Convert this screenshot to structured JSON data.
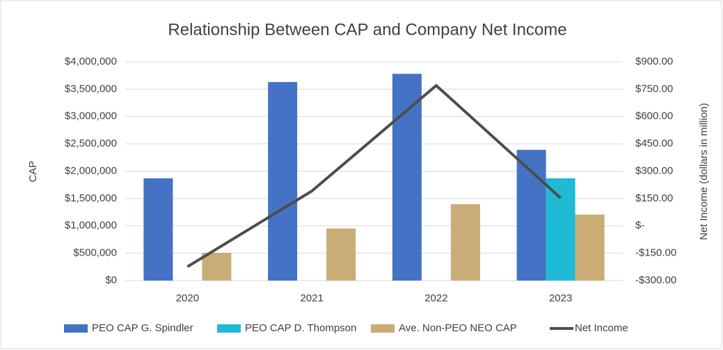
{
  "chart_data": {
    "type": "bar",
    "title": "Relationship Between CAP and Company Net Income",
    "ylabel": "CAP",
    "y2label": "Net Income (dollars in million)",
    "categories": [
      "2020",
      "2021",
      "2022",
      "2023"
    ],
    "series": [
      {
        "name": "PEO CAP G. Spindler",
        "color": "#4472c4",
        "values": [
          1870000,
          3630000,
          3780000,
          2390000
        ]
      },
      {
        "name": "PEO CAP D. Thompson",
        "color": "#1fbad6",
        "values": [
          null,
          null,
          null,
          1870000
        ]
      },
      {
        "name": "Ave. Non-PEO NEO CAP",
        "color": "#c9ac76",
        "values": [
          508000,
          952000,
          1397000,
          1206000
        ]
      },
      {
        "name": "Net Income",
        "color": "#4d4d4d",
        "type": "line",
        "axis": "y2",
        "values": [
          -224,
          191,
          770,
          153
        ]
      }
    ],
    "ylim": [
      0,
      4000000
    ],
    "yticks": [
      {
        "value": 0,
        "label": "$0"
      },
      {
        "value": 500000,
        "label": "$500,000"
      },
      {
        "value": 1000000,
        "label": "$1,000,000"
      },
      {
        "value": 1500000,
        "label": "$1,500,000"
      },
      {
        "value": 2000000,
        "label": "$2,000,000"
      },
      {
        "value": 2500000,
        "label": "$2,500,000"
      },
      {
        "value": 3000000,
        "label": "$3,000,000"
      },
      {
        "value": 3500000,
        "label": "$3,500,000"
      },
      {
        "value": 4000000,
        "label": "$4,000,000"
      }
    ],
    "y2lim": [
      -300,
      900
    ],
    "y2ticks": [
      {
        "value": -300,
        "label": "-$300.00"
      },
      {
        "value": -150,
        "label": "-$150.00"
      },
      {
        "value": 0,
        "label": "$-"
      },
      {
        "value": 150,
        "label": "$150.00"
      },
      {
        "value": 300,
        "label": "$300.00"
      },
      {
        "value": 450,
        "label": "$450.00"
      },
      {
        "value": 600,
        "label": "$600.00"
      },
      {
        "value": 750,
        "label": "$750.00"
      },
      {
        "value": 900,
        "label": "$900.00"
      }
    ],
    "grid": true,
    "legend": "bottom"
  }
}
